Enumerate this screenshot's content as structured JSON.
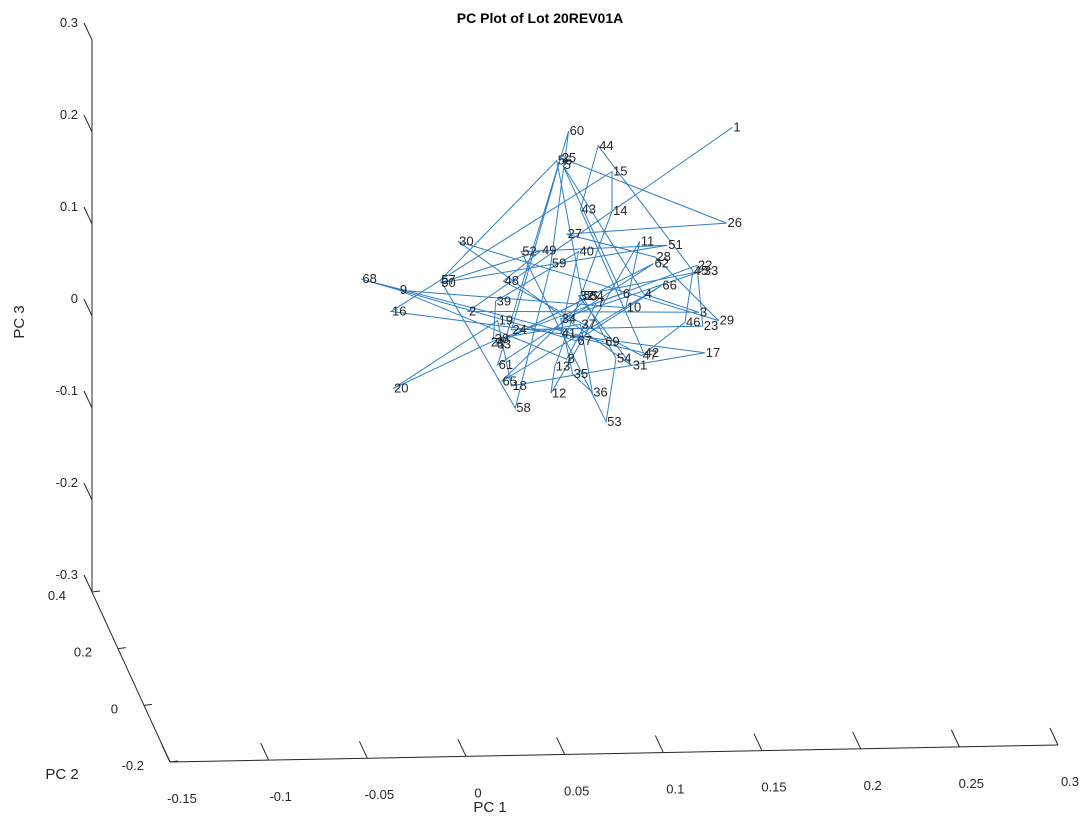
{
  "chart_data": {
    "type": "line",
    "title": "PC Plot of Lot 20REV01A",
    "xlabel": "PC 1",
    "ylabel": "PC 2",
    "zlabel": "PC 3",
    "series_color": "#2E7EC4",
    "x_ticks": [
      "-0.15",
      "-0.1",
      "-0.05",
      "0",
      "0.05",
      "0.1",
      "0.15",
      "0.2",
      "0.25",
      "0.3"
    ],
    "y_ticks": [
      "-0.2",
      "0",
      "0.2",
      "0.4"
    ],
    "z_ticks": [
      "-0.3",
      "-0.2",
      "-0.1",
      "0",
      "0.1",
      "0.2",
      "0.3"
    ],
    "grid": false,
    "points": [
      {
        "label": "1",
        "h": 0.135,
        "v": 0.205
      },
      {
        "label": "2",
        "h": 0.001,
        "v": 0.005
      },
      {
        "label": "3",
        "h": 0.118,
        "v": 0.004
      },
      {
        "label": "4",
        "h": 0.09,
        "v": 0.024
      },
      {
        "label": "5",
        "h": 0.049,
        "v": 0.164
      },
      {
        "label": "6",
        "h": 0.079,
        "v": 0.024
      },
      {
        "label": "7",
        "h": 0.066,
        "v": 0.014
      },
      {
        "label": "8",
        "h": 0.051,
        "v": -0.047
      },
      {
        "label": "9",
        "h": -0.034,
        "v": 0.028
      },
      {
        "label": "10",
        "h": 0.081,
        "v": 0.009
      },
      {
        "label": "11",
        "h": 0.088,
        "v": 0.081
      },
      {
        "label": "12",
        "h": 0.043,
        "v": -0.084
      },
      {
        "label": "13",
        "h": 0.045,
        "v": -0.055
      },
      {
        "label": "14",
        "h": 0.074,
        "v": 0.114
      },
      {
        "label": "15",
        "h": 0.074,
        "v": 0.157
      },
      {
        "label": "16",
        "h": -0.038,
        "v": 0.005
      },
      {
        "label": "17",
        "h": 0.121,
        "v": -0.04
      },
      {
        "label": "18",
        "h": 0.023,
        "v": -0.076
      },
      {
        "label": "19",
        "h": 0.016,
        "v": -0.005
      },
      {
        "label": "20",
        "h": -0.037,
        "v": -0.079
      },
      {
        "label": "21",
        "h": 0.012,
        "v": -0.029
      },
      {
        "label": "22",
        "h": 0.117,
        "v": 0.055
      },
      {
        "label": "23",
        "h": 0.12,
        "v": -0.011
      },
      {
        "label": "24",
        "h": 0.023,
        "v": -0.015
      },
      {
        "label": "25",
        "h": 0.048,
        "v": 0.172
      },
      {
        "label": "26",
        "h": 0.132,
        "v": 0.101
      },
      {
        "label": "27",
        "h": 0.051,
        "v": 0.089
      },
      {
        "label": "28",
        "h": 0.096,
        "v": 0.064
      },
      {
        "label": "29",
        "h": 0.128,
        "v": -0.005
      },
      {
        "label": "30",
        "h": -0.004,
        "v": 0.081
      },
      {
        "label": "31",
        "h": 0.084,
        "v": -0.054
      },
      {
        "label": "32",
        "h": 0.057,
        "v": 0.022
      },
      {
        "label": "33",
        "h": 0.12,
        "v": 0.049
      },
      {
        "label": "34",
        "h": 0.048,
        "v": -0.003
      },
      {
        "label": "35",
        "h": 0.054,
        "v": -0.063
      },
      {
        "label": "36",
        "h": 0.064,
        "v": -0.083
      },
      {
        "label": "37",
        "h": 0.058,
        "v": -0.009
      },
      {
        "label": "38",
        "h": 0.014,
        "v": -0.025
      },
      {
        "label": "39",
        "h": 0.015,
        "v": 0.016
      },
      {
        "label": "40",
        "h": 0.057,
        "v": 0.07
      },
      {
        "label": "41",
        "h": 0.048,
        "v": -0.019
      },
      {
        "label": "42",
        "h": 0.09,
        "v": -0.04
      },
      {
        "label": "43",
        "h": 0.058,
        "v": 0.116
      },
      {
        "label": "44",
        "h": 0.067,
        "v": 0.185
      },
      {
        "label": "45",
        "h": 0.115,
        "v": 0.049
      },
      {
        "label": "46",
        "h": 0.111,
        "v": -0.007
      },
      {
        "label": "47",
        "h": 0.089,
        "v": -0.043
      },
      {
        "label": "48",
        "h": 0.019,
        "v": 0.038
      },
      {
        "label": "49",
        "h": 0.038,
        "v": 0.071
      },
      {
        "label": "50",
        "h": -0.013,
        "v": 0.036
      },
      {
        "label": "51",
        "h": 0.102,
        "v": 0.077
      },
      {
        "label": "52",
        "h": 0.028,
        "v": 0.07
      },
      {
        "label": "53",
        "h": 0.071,
        "v": -0.115
      },
      {
        "label": "54",
        "h": 0.076,
        "v": -0.046
      },
      {
        "label": "55",
        "h": 0.059,
        "v": 0.022
      },
      {
        "label": "56",
        "h": 0.046,
        "v": 0.169
      },
      {
        "label": "57",
        "h": -0.013,
        "v": 0.039
      },
      {
        "label": "58",
        "h": 0.025,
        "v": -0.1
      },
      {
        "label": "59",
        "h": 0.043,
        "v": 0.057
      },
      {
        "label": "60",
        "h": 0.052,
        "v": 0.201
      },
      {
        "label": "61",
        "h": 0.016,
        "v": -0.053
      },
      {
        "label": "62",
        "h": 0.095,
        "v": 0.057
      },
      {
        "label": "63",
        "h": 0.015,
        "v": -0.031
      },
      {
        "label": "64",
        "h": 0.062,
        "v": 0.021
      },
      {
        "label": "65",
        "h": 0.018,
        "v": -0.071
      },
      {
        "label": "66",
        "h": 0.099,
        "v": 0.033
      },
      {
        "label": "67",
        "h": 0.056,
        "v": -0.027
      },
      {
        "label": "68",
        "h": -0.053,
        "v": 0.04
      },
      {
        "label": "69",
        "h": 0.07,
        "v": -0.028
      }
    ]
  }
}
